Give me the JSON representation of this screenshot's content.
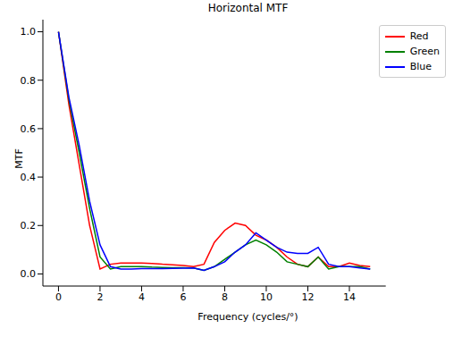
{
  "chart_data": {
    "type": "line",
    "title": "Horizontal MTF",
    "x_label": "Frequency (cycles/°)",
    "y_label": "MTF",
    "x": [
      0,
      0.5,
      1,
      1.5,
      2,
      2.5,
      3,
      3.5,
      4,
      4.5,
      5,
      5.5,
      6,
      6.5,
      7,
      7.5,
      8,
      8.5,
      9,
      9.5,
      10,
      10.5,
      11,
      11.5,
      12,
      12.5,
      13,
      13.5,
      14,
      14.5,
      15
    ],
    "series": [
      {
        "name": "Red",
        "color": "#ff0000",
        "values": [
          1.0,
          0.7,
          0.45,
          0.2,
          0.02,
          0.04,
          0.045,
          0.045,
          0.045,
          0.043,
          0.04,
          0.038,
          0.035,
          0.03,
          0.04,
          0.13,
          0.18,
          0.21,
          0.2,
          0.16,
          0.14,
          0.11,
          0.07,
          0.04,
          0.03,
          0.07,
          0.03,
          0.03,
          0.045,
          0.035,
          0.03
        ]
      },
      {
        "name": "Green",
        "color": "#008000",
        "values": [
          1.0,
          0.72,
          0.5,
          0.27,
          0.07,
          0.02,
          0.03,
          0.03,
          0.03,
          0.028,
          0.027,
          0.026,
          0.026,
          0.025,
          0.015,
          0.03,
          0.06,
          0.09,
          0.12,
          0.14,
          0.12,
          0.09,
          0.05,
          0.04,
          0.03,
          0.07,
          0.02,
          0.03,
          0.03,
          0.03,
          0.02
        ]
      },
      {
        "name": "Blue",
        "color": "#0000ff",
        "values": [
          1.0,
          0.73,
          0.53,
          0.3,
          0.12,
          0.03,
          0.02,
          0.02,
          0.022,
          0.022,
          0.022,
          0.023,
          0.024,
          0.025,
          0.015,
          0.03,
          0.05,
          0.09,
          0.12,
          0.17,
          0.14,
          0.11,
          0.09,
          0.085,
          0.085,
          0.11,
          0.04,
          0.03,
          0.03,
          0.025,
          0.02
        ]
      }
    ],
    "xlim": [
      -0.75,
      15.75
    ],
    "xticks": [
      0,
      2,
      4,
      6,
      8,
      10,
      12,
      14
    ],
    "ylim": [
      -0.05,
      1.05
    ],
    "yticks": [
      {
        "value": 0,
        "label": "0.0"
      },
      {
        "value": 0.2,
        "label": "0.2"
      },
      {
        "value": 0.4,
        "label": "0.4"
      },
      {
        "value": 0.6,
        "label": "0.6"
      },
      {
        "value": 0.8,
        "label": "0.8"
      },
      {
        "value": 1.0,
        "label": "1.0"
      }
    ],
    "legend": "upper right"
  }
}
